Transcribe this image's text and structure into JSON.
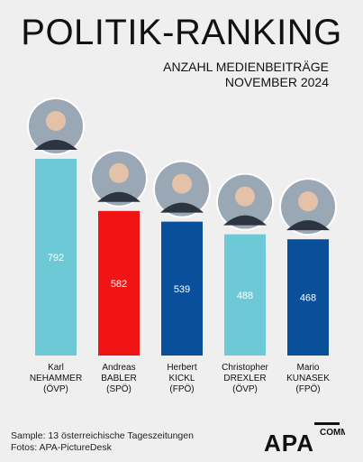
{
  "header": {
    "title": "POLITIK-RANKING",
    "subtitle_line1": "ANZAHL MEDIENBEITRÄGE",
    "subtitle_line2": "NOVEMBER 2024"
  },
  "chart_data": {
    "type": "bar",
    "categories": [
      "Karl NEHAMMER (ÖVP)",
      "Andreas BABLER (SPÖ)",
      "Herbert KICKL (FPÖ)",
      "Christopher DREXLER (ÖVP)",
      "Mario KUNASEK (FPÖ)"
    ],
    "category_lines": [
      [
        "Karl",
        "NEHAMMER",
        "(ÖVP)"
      ],
      [
        "Andreas",
        "BABLER",
        "(SPÖ)"
      ],
      [
        "Herbert",
        "KICKL",
        "(FPÖ)"
      ],
      [
        "Christopher",
        "DREXLER",
        "(ÖVP)"
      ],
      [
        "Mario",
        "KUNASEK",
        "(FPÖ)"
      ]
    ],
    "values": [
      792,
      582,
      539,
      488,
      468
    ],
    "colors": [
      "#6ec9d6",
      "#f01414",
      "#0a4f9a",
      "#6ec9d6",
      "#0a4f9a"
    ],
    "ylim": [
      0,
      792
    ],
    "grid": false,
    "xlabel": "",
    "ylabel": ""
  },
  "footer": {
    "note": "Sample: 13 österreichische Tageszeitungen",
    "credit": "Fotos: APA-PictureDesk",
    "logo_text": "APA",
    "logo_sub": "COMM"
  },
  "colors": {
    "background": "#efefef",
    "label_text": "#ffffff"
  }
}
